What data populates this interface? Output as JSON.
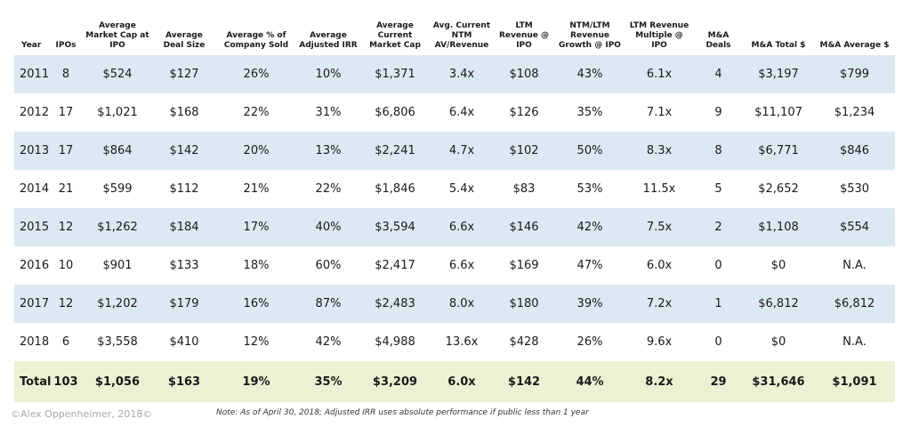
{
  "headers": [
    "Year",
    "IPOs",
    "Average Market Cap at IPO",
    "Average Deal Size",
    "Average % of Company Sold",
    "Average Adjusted IRR",
    "Average Current Market Cap",
    "Avg. Current NTM AV/Revenue",
    "LTM Revenue @ IPO",
    "NTM/LTM Revenue Growth @ IPO",
    "LTM Revenue Multiple @ IPO",
    "M&A Deals",
    "M&A Total $",
    "M&A Average $"
  ],
  "rows": [
    [
      "2011",
      "8",
      "$524",
      "$127",
      "26%",
      "10%",
      "$1,371",
      "3.4x",
      "$108",
      "43%",
      "6.1x",
      "4",
      "$3,197",
      "$799"
    ],
    [
      "2012",
      "17",
      "$1,021",
      "$168",
      "22%",
      "31%",
      "$6,806",
      "6.4x",
      "$126",
      "35%",
      "7.1x",
      "9",
      "$11,107",
      "$1,234"
    ],
    [
      "2013",
      "17",
      "$864",
      "$142",
      "20%",
      "13%",
      "$2,241",
      "4.7x",
      "$102",
      "50%",
      "8.3x",
      "8",
      "$6,771",
      "$846"
    ],
    [
      "2014",
      "21",
      "$599",
      "$112",
      "21%",
      "22%",
      "$1,846",
      "5.4x",
      "$83",
      "53%",
      "11.5x",
      "5",
      "$2,652",
      "$530"
    ],
    [
      "2015",
      "12",
      "$1,262",
      "$184",
      "17%",
      "40%",
      "$3,594",
      "6.6x",
      "$146",
      "42%",
      "7.5x",
      "2",
      "$1,108",
      "$554"
    ],
    [
      "2016",
      "10",
      "$901",
      "$133",
      "18%",
      "60%",
      "$2,417",
      "6.6x",
      "$169",
      "47%",
      "6.0x",
      "0",
      "$0",
      "N.A."
    ],
    [
      "2017",
      "12",
      "$1,202",
      "$179",
      "16%",
      "87%",
      "$2,483",
      "8.0x",
      "$180",
      "39%",
      "7.2x",
      "1",
      "$6,812",
      "$6,812"
    ],
    [
      "2018",
      "6",
      "$3,558",
      "$410",
      "12%",
      "42%",
      "$4,988",
      "13.6x",
      "$428",
      "26%",
      "9.6x",
      "0",
      "$0",
      "N.A."
    ]
  ],
  "total": [
    "Total",
    "103",
    "$1,056",
    "$163",
    "19%",
    "35%",
    "$3,209",
    "6.0x",
    "$142",
    "44%",
    "8.2x",
    "29",
    "$31,646",
    "$1,091"
  ],
  "footer": {
    "copyright": "©Alex Oppenheimer, 2018©",
    "note": "Note: As of April 30, 2018; Adjusted IRR uses absolute performance if public less than 1 year"
  },
  "colors": {
    "row_shade": "#dbe9f2",
    "total_shade": "#ebf1d2"
  }
}
